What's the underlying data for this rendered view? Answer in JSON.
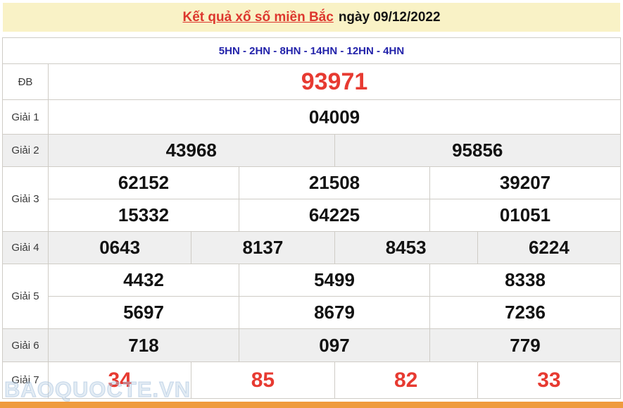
{
  "header": {
    "title": "Kết quả xổ số miền Bắc",
    "date_label": "ngày 09/12/2022"
  },
  "subheader": {
    "stations": "5HN - 2HN - 8HN - 14HN - 12HN - 4HN"
  },
  "table": {
    "rows": [
      {
        "label": "ĐB",
        "lines": [
          [
            "93971"
          ]
        ]
      },
      {
        "label": "Giải 1",
        "lines": [
          [
            "04009"
          ]
        ]
      },
      {
        "label": "Giải 2",
        "lines": [
          [
            "43968",
            "95856"
          ]
        ]
      },
      {
        "label": "Giải 3",
        "lines": [
          [
            "62152",
            "21508",
            "39207"
          ],
          [
            "15332",
            "64225",
            "01051"
          ]
        ]
      },
      {
        "label": "Giải 4",
        "lines": [
          [
            "0643",
            "8137",
            "8453",
            "6224"
          ]
        ]
      },
      {
        "label": "Giải 5",
        "lines": [
          [
            "4432",
            "5499",
            "8338"
          ],
          [
            "5697",
            "8679",
            "7236"
          ]
        ]
      },
      {
        "label": "Giải 6",
        "lines": [
          [
            "718",
            "097",
            "779"
          ]
        ]
      },
      {
        "label": "Giải 7",
        "lines": [
          [
            "34",
            "85",
            "82",
            "33"
          ]
        ]
      }
    ]
  },
  "watermark": "BAOQUOCTE.VN",
  "colors": {
    "header_bg": "#f9f2c6",
    "title_red": "#dd372e",
    "station_blue": "#2323aa",
    "number_red": "#e73a31",
    "number_black": "#121212",
    "alt_row_bg": "#efefef",
    "border": "#cfccc6",
    "bottom_bar_orange": "#ef9b3e"
  }
}
